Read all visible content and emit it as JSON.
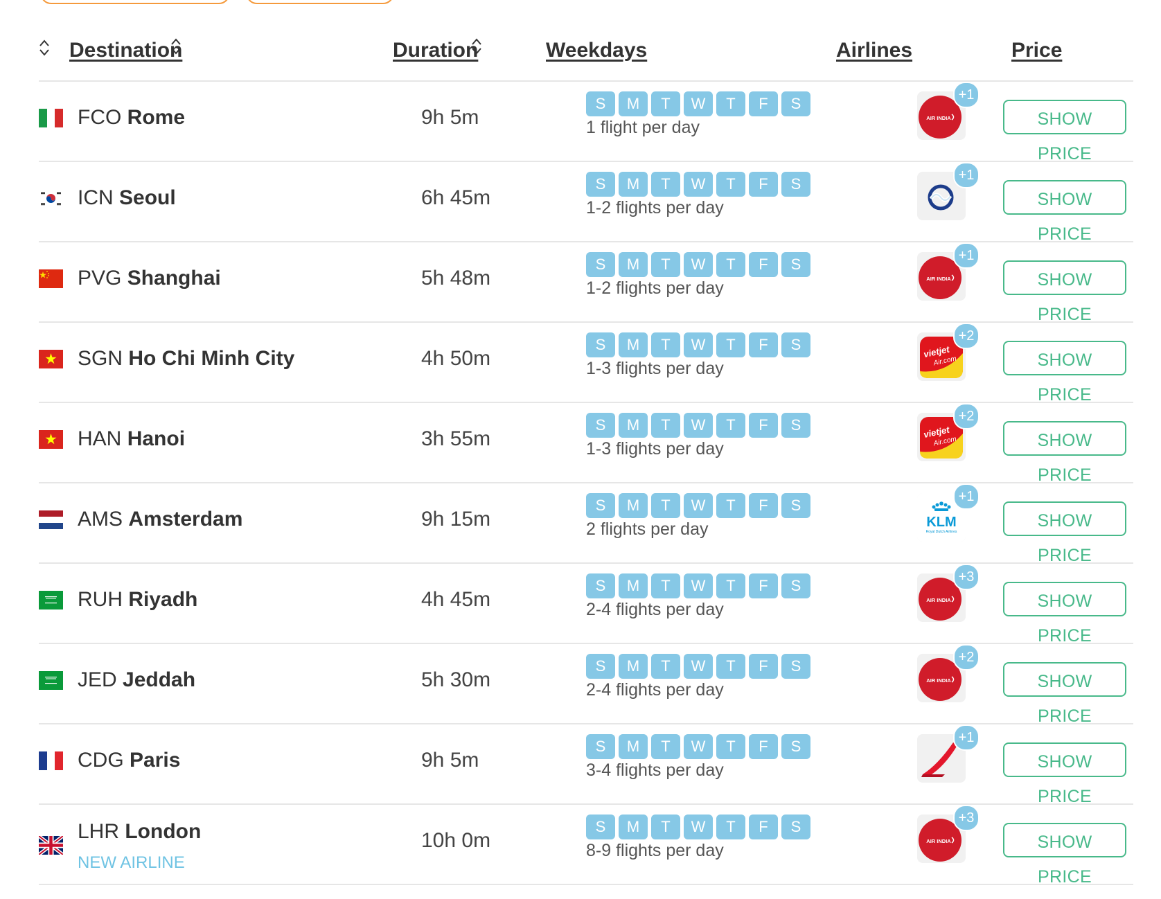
{
  "header": {
    "destination": "Destination",
    "duration": "Duration",
    "weekdays": "Weekdays",
    "airlines": "Airlines",
    "price": "Price"
  },
  "weekday_letters": [
    "S",
    "M",
    "T",
    "W",
    "T",
    "F",
    "S"
  ],
  "show_price_label": "SHOW PRICE",
  "rows": [
    {
      "code": "FCO",
      "city": "Rome",
      "flag": "italy-flag",
      "duration": "9h 5m",
      "frequency": "1 flight per day",
      "airline_logo": "air-india-logo",
      "airline_extra": "+1",
      "note": ""
    },
    {
      "code": "ICN",
      "city": "Seoul",
      "flag": "south-korea-flag",
      "duration": "6h 45m",
      "frequency": "1-2 flights per day",
      "airline_logo": "korean-air-logo",
      "airline_extra": "+1",
      "note": ""
    },
    {
      "code": "PVG",
      "city": "Shanghai",
      "flag": "china-flag",
      "duration": "5h 48m",
      "frequency": "1-2 flights per day",
      "airline_logo": "air-india-logo",
      "airline_extra": "+1",
      "note": ""
    },
    {
      "code": "SGN",
      "city": "Ho Chi Minh City",
      "flag": "vietnam-flag",
      "duration": "4h 50m",
      "frequency": "1-3 flights per day",
      "airline_logo": "vietjet-logo",
      "airline_extra": "+2",
      "note": ""
    },
    {
      "code": "HAN",
      "city": "Hanoi",
      "flag": "vietnam-flag",
      "duration": "3h 55m",
      "frequency": "1-3 flights per day",
      "airline_logo": "vietjet-logo",
      "airline_extra": "+2",
      "note": ""
    },
    {
      "code": "AMS",
      "city": "Amsterdam",
      "flag": "netherlands-flag",
      "duration": "9h 15m",
      "frequency": "2 flights per day",
      "airline_logo": "klm-logo",
      "airline_extra": "+1",
      "note": ""
    },
    {
      "code": "RUH",
      "city": "Riyadh",
      "flag": "saudi-arabia-flag",
      "duration": "4h 45m",
      "frequency": "2-4 flights per day",
      "airline_logo": "air-india-logo",
      "airline_extra": "+3",
      "note": ""
    },
    {
      "code": "JED",
      "city": "Jeddah",
      "flag": "saudi-arabia-flag",
      "duration": "5h 30m",
      "frequency": "2-4 flights per day",
      "airline_logo": "air-india-logo",
      "airline_extra": "+2",
      "note": ""
    },
    {
      "code": "CDG",
      "city": "Paris",
      "flag": "france-flag",
      "duration": "9h 5m",
      "frequency": "3-4 flights per day",
      "airline_logo": "air-france-logo",
      "airline_extra": "+1",
      "note": ""
    },
    {
      "code": "LHR",
      "city": "London",
      "flag": "uk-flag",
      "duration": "10h 0m",
      "frequency": "8-9 flights per day",
      "airline_logo": "air-india-logo",
      "airline_extra": "+3",
      "note": "NEW AIRLINE"
    }
  ],
  "logo_text": {
    "air_india": "AIR INDIA",
    "vietjet": "vietjet",
    "vietjet_domain": "Air.com",
    "klm": "KLM",
    "klm_sub": "Royal Dutch Airlines"
  },
  "colors": {
    "accent_orange": "#f59a3c",
    "weekday_pill": "#86c8e6",
    "show_price_green": "#48b98a",
    "note_blue": "#6fc3e3",
    "air_india_red": "#d01c2a"
  }
}
